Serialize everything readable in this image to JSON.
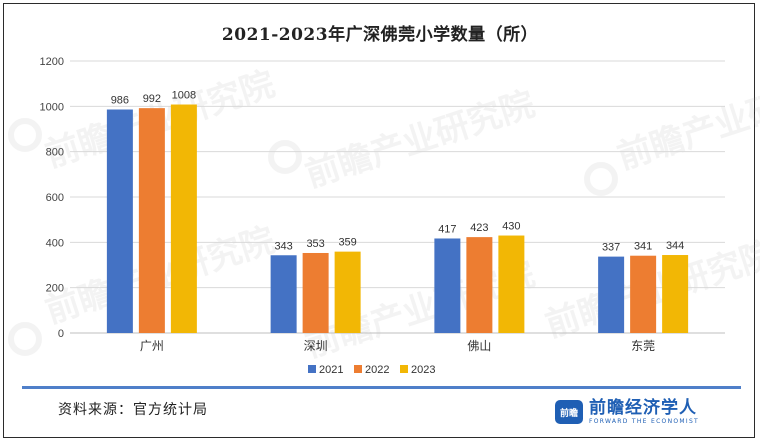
{
  "brand": {
    "mark": "前瞻",
    "name_cn": "前瞻经济学人",
    "name_en": "FORWARD THE ECONOMIST"
  },
  "watermark_text": "前瞻产业研究院",
  "source_text": "资料来源：官方统计局",
  "colors": {
    "s2021": "#4472c4",
    "s2022": "#ed7d31",
    "s2023": "#f2b705",
    "rule": "#4f7fc9"
  },
  "chart_data": {
    "type": "bar",
    "title": "2021-2023年广深佛莞小学数量（所）",
    "categories": [
      "广州",
      "深圳",
      "佛山",
      "东莞"
    ],
    "series": [
      {
        "name": "2021",
        "values": [
          986,
          343,
          417,
          337
        ]
      },
      {
        "name": "2022",
        "values": [
          992,
          353,
          423,
          341
        ]
      },
      {
        "name": "2023",
        "values": [
          1008,
          359,
          430,
          344
        ]
      }
    ],
    "ylim": [
      0,
      1200
    ],
    "yticks": [
      0,
      200,
      400,
      600,
      800,
      1000,
      1200
    ],
    "grid": true,
    "legend_position": "bottom",
    "data_labels": true,
    "xlabel": "",
    "ylabel": ""
  }
}
